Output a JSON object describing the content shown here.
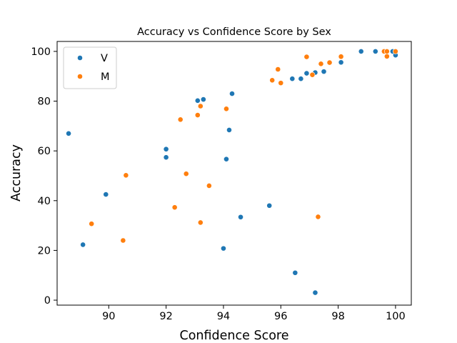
{
  "chart_data": {
    "type": "scatter",
    "title": "Accuracy vs Confidence Score by Sex",
    "xlabel": "Confidence Score",
    "ylabel": "Accuracy",
    "xlim": [
      88.2,
      100.55
    ],
    "ylim": [
      -2,
      104
    ],
    "xticks": [
      90,
      92,
      94,
      96,
      98,
      100
    ],
    "yticks": [
      0,
      20,
      40,
      60,
      80,
      100
    ],
    "grid": false,
    "legend_position": "top-left",
    "series": [
      {
        "name": "V",
        "color": "#1f77b4",
        "points": [
          [
            88.6,
            67
          ],
          [
            89.1,
            22.3
          ],
          [
            89.9,
            42.5
          ],
          [
            92.0,
            60.7
          ],
          [
            92.0,
            57.4
          ],
          [
            93.1,
            80.2
          ],
          [
            93.3,
            80.7
          ],
          [
            94.0,
            20.8
          ],
          [
            94.1,
            56.7
          ],
          [
            94.2,
            68.4
          ],
          [
            94.3,
            83.0
          ],
          [
            94.6,
            33.4
          ],
          [
            95.6,
            38.0
          ],
          [
            96.4,
            89.0
          ],
          [
            96.5,
            11.0
          ],
          [
            96.7,
            89.0
          ],
          [
            96.9,
            91.2
          ],
          [
            97.2,
            91.5
          ],
          [
            97.2,
            3.0
          ],
          [
            97.5,
            91.9
          ],
          [
            98.1,
            95.6
          ],
          [
            98.8,
            100
          ],
          [
            99.3,
            100
          ],
          [
            99.9,
            100
          ],
          [
            100.0,
            98.5
          ]
        ]
      },
      {
        "name": "M",
        "color": "#ff7f0e",
        "points": [
          [
            89.4,
            30.7
          ],
          [
            90.5,
            24.0
          ],
          [
            90.6,
            50.2
          ],
          [
            92.3,
            37.3
          ],
          [
            92.5,
            72.6
          ],
          [
            92.7,
            50.8
          ],
          [
            93.1,
            74.4
          ],
          [
            93.2,
            78.0
          ],
          [
            93.2,
            31.2
          ],
          [
            93.5,
            46.0
          ],
          [
            94.1,
            76.9
          ],
          [
            95.7,
            88.4
          ],
          [
            95.9,
            92.8
          ],
          [
            96.0,
            87.3
          ],
          [
            96.9,
            97.8
          ],
          [
            97.1,
            90.6
          ],
          [
            97.3,
            33.5
          ],
          [
            97.4,
            95.0
          ],
          [
            97.7,
            95.5
          ],
          [
            98.1,
            97.9
          ],
          [
            99.6,
            100
          ],
          [
            99.7,
            100
          ],
          [
            99.7,
            98.0
          ],
          [
            100.0,
            100
          ]
        ]
      }
    ]
  }
}
